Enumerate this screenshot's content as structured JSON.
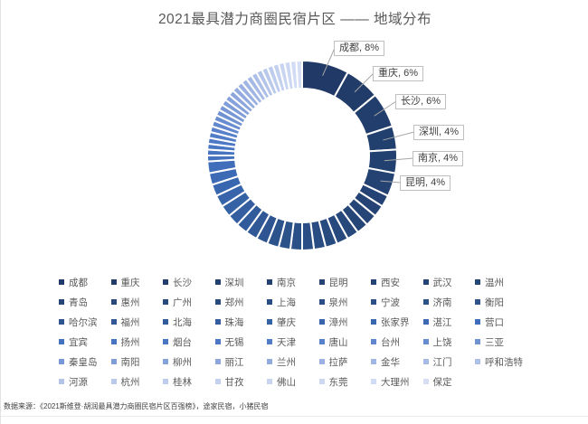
{
  "title": "2021最具潜力商圈民宿片区 —— 地域分布",
  "footer": "数据来源：《2021斯维登·胡润最具潜力商圈民宿片区百强榜》，途家民宿，小猪民宿",
  "colors": {
    "title_text": "#595959",
    "legend_text": "#595959",
    "slice_gap": "#ffffff",
    "callout_border": "#bfbfbf",
    "callout_text": "#404040",
    "leader_line": "#a6a6a6",
    "darkest_slice": "#1F3864",
    "lightest_slice": "#D8E0F5"
  },
  "chart_data": {
    "type": "pie",
    "subtype": "donut",
    "title": "2021最具潜力商圈民宿片区 —— 地域分布",
    "unit": "%",
    "start_angle_deg": 0,
    "direction": "clockwise",
    "legend_position": "bottom",
    "categories": [
      "成都",
      "重庆",
      "长沙",
      "深圳",
      "南京",
      "昆明",
      "西安",
      "武汉",
      "温州",
      "青岛",
      "惠州",
      "广州",
      "郑州",
      "上海",
      "泉州",
      "宁波",
      "济南",
      "衡阳",
      "哈尔滨",
      "福州",
      "北海",
      "珠海",
      "肇庆",
      "漳州",
      "张家界",
      "湛江",
      "营口",
      "宜宾",
      "扬州",
      "烟台",
      "无锡",
      "天津",
      "唐山",
      "台州",
      "上饶",
      "三亚",
      "秦皇岛",
      "南阳",
      "柳州",
      "丽江",
      "兰州",
      "拉萨",
      "金华",
      "江门",
      "呼和浩特",
      "河源",
      "杭州",
      "桂林",
      "甘孜",
      "佛山",
      "东莞",
      "大理州",
      "保定"
    ],
    "values": [
      8,
      6,
      6,
      4,
      4,
      4,
      2,
      2,
      2,
      2,
      2,
      2,
      2,
      2,
      2,
      2,
      2,
      2,
      2,
      2,
      2,
      2,
      2,
      2,
      2,
      2,
      2,
      1,
      1,
      1,
      1,
      1,
      1,
      1,
      1,
      1,
      1,
      1,
      1,
      1,
      1,
      1,
      1,
      1,
      1,
      1,
      1,
      1,
      1,
      1,
      1,
      1,
      1
    ],
    "labeled_slices_note": "only top 6 slices carry data labels; remaining values estimated from slice widths",
    "callouts": [
      {
        "city": "成都",
        "value": "8%",
        "text": "成都, 8%",
        "slice_index": 0
      },
      {
        "city": "重庆",
        "value": "6%",
        "text": "重庆, 6%",
        "slice_index": 1
      },
      {
        "city": "长沙",
        "value": "6%",
        "text": "长沙, 6%",
        "slice_index": 2
      },
      {
        "city": "深圳",
        "value": "4%",
        "text": "深圳, 4%",
        "slice_index": 3
      },
      {
        "city": "南京",
        "value": "4%",
        "text": "南京, 4%",
        "slice_index": 4
      },
      {
        "city": "昆明",
        "value": "4%",
        "text": "昆明, 4%",
        "slice_index": 5
      }
    ],
    "color_stops": [
      {
        "t": 0.0,
        "color": "#1F3864"
      },
      {
        "t": 0.38,
        "color": "#254576"
      },
      {
        "t": 0.56,
        "color": "#2D548E"
      },
      {
        "t": 0.7,
        "color": "#3A68B2"
      },
      {
        "t": 0.78,
        "color": "#4D79C7"
      },
      {
        "t": 0.86,
        "color": "#8AA5DC"
      },
      {
        "t": 0.94,
        "color": "#BCCBEC"
      },
      {
        "t": 1.0,
        "color": "#D8E0F5"
      }
    ]
  }
}
